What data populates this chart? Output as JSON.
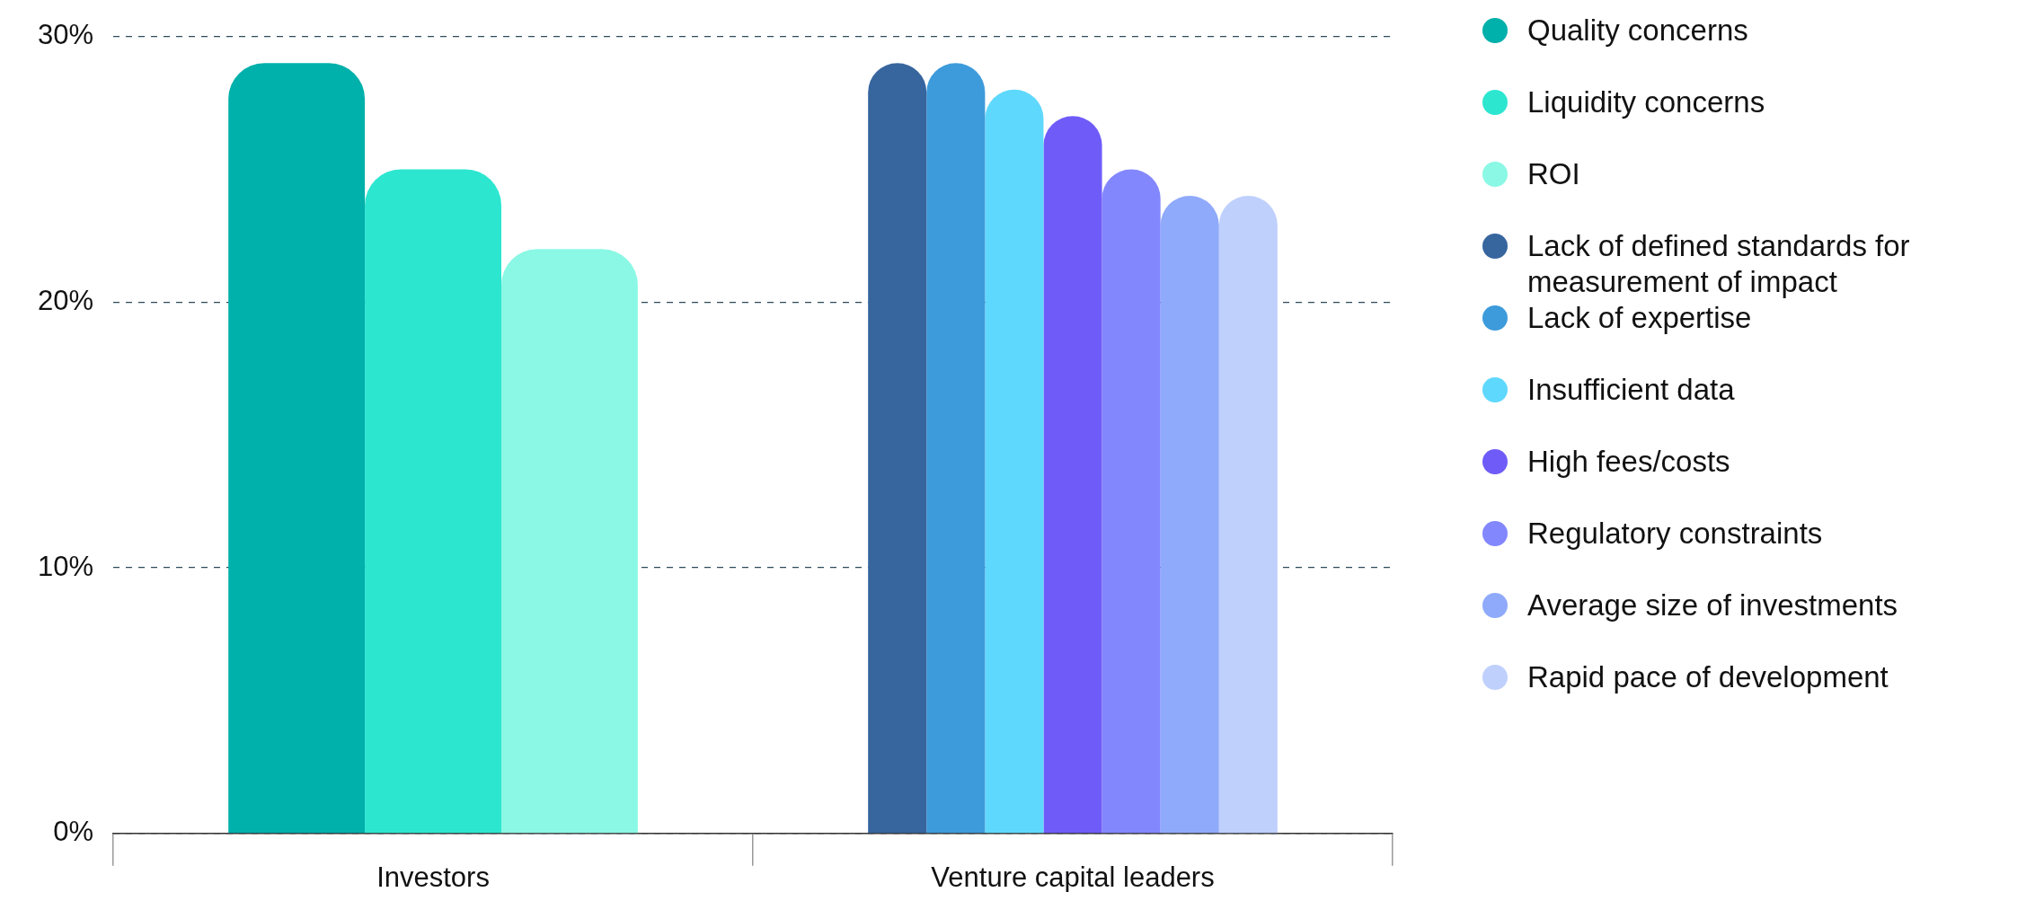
{
  "chart_data": {
    "type": "bar",
    "categories": [
      "Investors",
      "Venture capital leaders"
    ],
    "series": [
      {
        "name": "Quality concerns",
        "color": "#00b0aa",
        "values": [
          29,
          null
        ]
      },
      {
        "name": "Liquidity concerns",
        "color": "#2ce6d0",
        "values": [
          25,
          null
        ]
      },
      {
        "name": "ROI",
        "color": "#8af8e4",
        "values": [
          22,
          null
        ]
      },
      {
        "name": "Lack of defined standards for measurement of impact",
        "color": "#37659e",
        "values": [
          null,
          29
        ]
      },
      {
        "name": "Lack of expertise",
        "color": "#3d9bdb",
        "values": [
          null,
          29
        ]
      },
      {
        "name": "Insufficient data",
        "color": "#5fd8fd",
        "values": [
          null,
          28
        ]
      },
      {
        "name": "High fees/costs",
        "color": "#6f5cf8",
        "values": [
          null,
          27
        ]
      },
      {
        "name": "Regulatory constraints",
        "color": "#8387fd",
        "values": [
          null,
          25
        ]
      },
      {
        "name": "Average size of investments",
        "color": "#8faafa",
        "values": [
          null,
          24
        ]
      },
      {
        "name": "Rapid pace of development",
        "color": "#bfd0fd",
        "values": [
          null,
          24
        ]
      }
    ],
    "ylim": [
      0,
      30
    ],
    "yticks": [
      {
        "value": 0,
        "label": "0%"
      },
      {
        "value": 10,
        "label": "10%"
      },
      {
        "value": 20,
        "label": "20%"
      },
      {
        "value": 30,
        "label": "30%"
      }
    ],
    "grid": "y",
    "legend": "right"
  }
}
